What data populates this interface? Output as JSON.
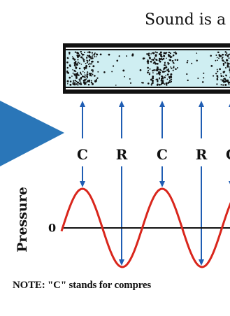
{
  "diagram": {
    "title": "Sound is a",
    "labels": [
      "C",
      "R",
      "C",
      "R",
      "C"
    ],
    "y_axis_label": "Pressure",
    "zero_label": "0",
    "note": "NOTE: \"C\" stands for compres",
    "colors": {
      "tube_fill": "#cfeef2",
      "tube_border": "#111111",
      "wave": "#d9261c",
      "arrow": "#1f5db3",
      "pointer": "#2a76b8"
    }
  }
}
